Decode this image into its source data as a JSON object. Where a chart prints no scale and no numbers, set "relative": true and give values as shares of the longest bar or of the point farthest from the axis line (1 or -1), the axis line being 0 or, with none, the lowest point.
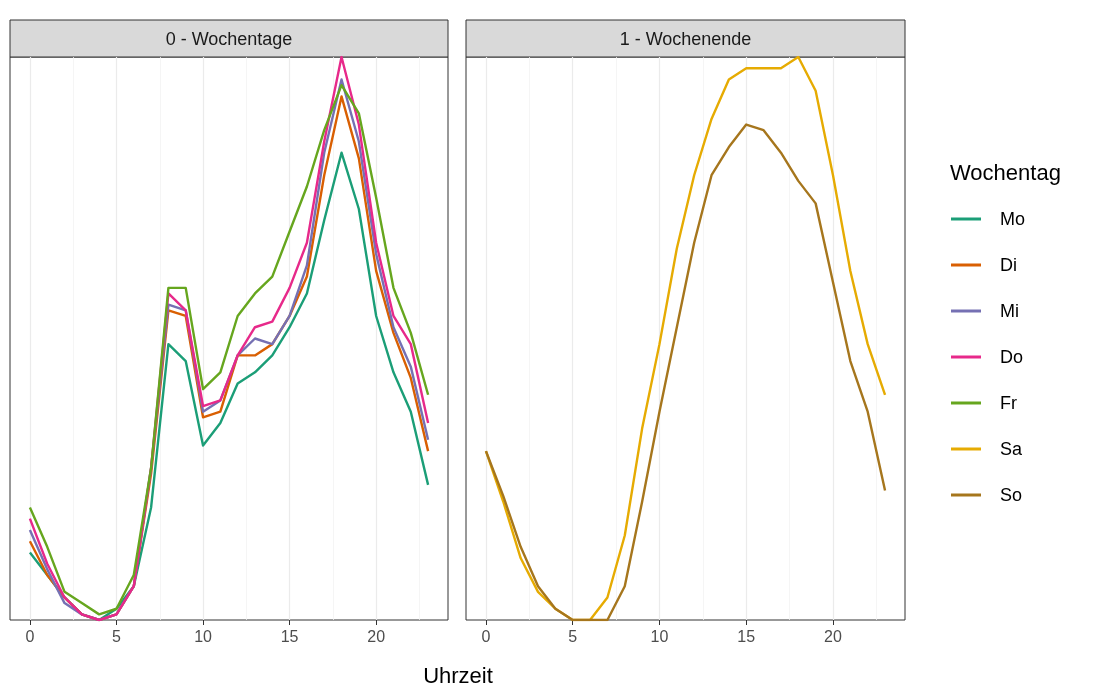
{
  "chart_data": [
    {
      "type": "line",
      "title": "0 - Wochentage",
      "xlabel": "Uhrzeit",
      "relative": true,
      "grid": "x",
      "legend": "right",
      "xlim": [
        -1.15,
        24.15
      ],
      "xticks": [
        0,
        5,
        10,
        15,
        20
      ],
      "x": [
        0,
        1,
        2,
        3,
        4,
        5,
        6,
        7,
        8,
        9,
        10,
        11,
        12,
        13,
        14,
        15,
        16,
        17,
        18,
        19,
        20,
        21,
        22,
        23
      ],
      "series": [
        {
          "name": "Mo",
          "color": "#1b9e77",
          "values": [
            0.12,
            0.08,
            0.04,
            0.01,
            0.0,
            0.02,
            0.06,
            0.2,
            0.49,
            0.46,
            0.31,
            0.35,
            0.42,
            0.44,
            0.47,
            0.52,
            0.58,
            0.71,
            0.83,
            0.73,
            0.54,
            0.44,
            0.37,
            0.24
          ]
        },
        {
          "name": "Di",
          "color": "#d95f02",
          "values": [
            0.14,
            0.08,
            0.04,
            0.01,
            0.0,
            0.01,
            0.06,
            0.26,
            0.55,
            0.54,
            0.36,
            0.37,
            0.47,
            0.47,
            0.49,
            0.54,
            0.61,
            0.79,
            0.93,
            0.82,
            0.62,
            0.51,
            0.43,
            0.3
          ]
        },
        {
          "name": "Mi",
          "color": "#7570b3",
          "values": [
            0.16,
            0.09,
            0.03,
            0.01,
            0.0,
            0.01,
            0.06,
            0.27,
            0.56,
            0.55,
            0.37,
            0.39,
            0.47,
            0.5,
            0.49,
            0.54,
            0.63,
            0.83,
            0.96,
            0.85,
            0.65,
            0.52,
            0.45,
            0.32
          ]
        },
        {
          "name": "Do",
          "color": "#e7298a",
          "values": [
            0.18,
            0.1,
            0.04,
            0.01,
            0.0,
            0.01,
            0.06,
            0.27,
            0.58,
            0.55,
            0.38,
            0.39,
            0.47,
            0.52,
            0.53,
            0.59,
            0.67,
            0.85,
            1.0,
            0.88,
            0.67,
            0.54,
            0.49,
            0.35
          ]
        },
        {
          "name": "Fr",
          "color": "#66a61e",
          "values": [
            0.2,
            0.13,
            0.05,
            0.03,
            0.01,
            0.02,
            0.08,
            0.27,
            0.59,
            0.59,
            0.41,
            0.44,
            0.54,
            0.58,
            0.61,
            0.69,
            0.77,
            0.87,
            0.95,
            0.9,
            0.75,
            0.59,
            0.51,
            0.4
          ]
        }
      ]
    },
    {
      "type": "line",
      "title": "1 - Wochenende",
      "relative": true,
      "grid": "x",
      "legend": "right",
      "legend_title": "Wochentag",
      "xlim": [
        -1.15,
        24.15
      ],
      "xticks": [
        0,
        5,
        10,
        15,
        20
      ],
      "x": [
        0,
        1,
        2,
        3,
        4,
        5,
        6,
        7,
        8,
        9,
        10,
        11,
        12,
        13,
        14,
        15,
        16,
        17,
        18,
        19,
        20,
        21,
        22,
        23
      ],
      "series": [
        {
          "name": "Sa",
          "color": "#e6ab02",
          "values": [
            0.3,
            0.21,
            0.11,
            0.05,
            0.02,
            0,
            0,
            0.04,
            0.15,
            0.34,
            0.49,
            0.66,
            0.79,
            0.89,
            0.96,
            0.98,
            0.98,
            0.98,
            1,
            0.94,
            0.79,
            0.62,
            0.49,
            0.4
          ]
        },
        {
          "name": "So",
          "color": "#a6761d",
          "values": [
            0.3,
            0.22,
            0.13,
            0.06,
            0.02,
            0,
            0,
            0,
            0.06,
            0.21,
            0.37,
            0.52,
            0.67,
            0.79,
            0.84,
            0.88,
            0.87,
            0.83,
            0.78,
            0.74,
            0.6,
            0.46,
            0.37,
            0.23
          ]
        }
      ]
    }
  ]
}
